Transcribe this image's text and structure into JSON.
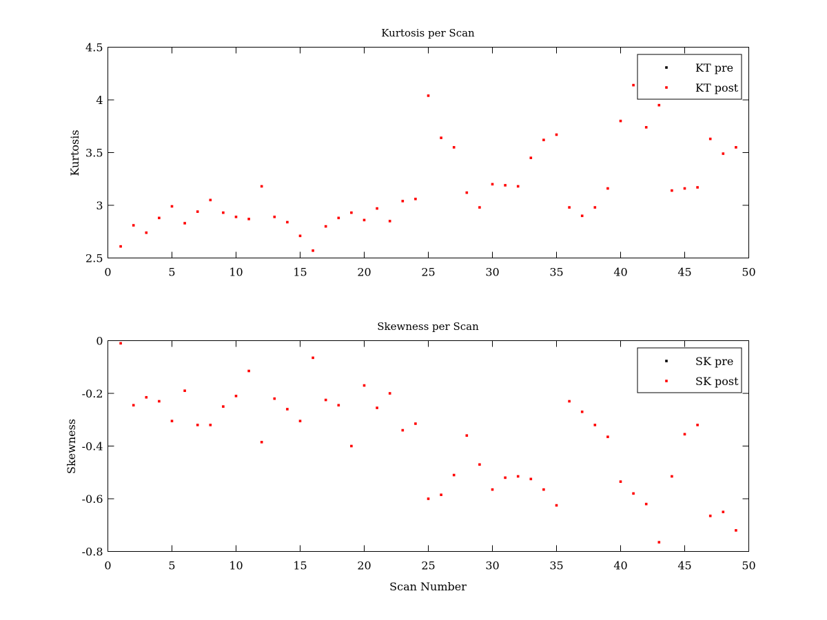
{
  "chart_data": [
    {
      "type": "scatter",
      "title": "Kurtosis per Scan",
      "xlabel": "",
      "ylabel": "Kurtosis",
      "xlim": [
        0,
        50
      ],
      "ylim": [
        2.5,
        4.5
      ],
      "xticks": [
        0,
        5,
        10,
        15,
        20,
        25,
        30,
        35,
        40,
        45,
        50
      ],
      "yticks": [
        2.5,
        3,
        3.5,
        4,
        4.5
      ],
      "xtick_labels": [
        "0",
        "5",
        "10",
        "15",
        "20",
        "25",
        "30",
        "35",
        "40",
        "45",
        "50"
      ],
      "ytick_labels": [
        "2.5",
        "3",
        "3.5",
        "4",
        "4.5"
      ],
      "grid": false,
      "legend_position": "top-right",
      "series": [
        {
          "name": "KT pre",
          "color": "#000000",
          "x": [],
          "y": []
        },
        {
          "name": "KT post",
          "color": "#ff0000",
          "x": [
            1,
            2,
            3,
            4,
            5,
            6,
            7,
            8,
            9,
            10,
            11,
            12,
            13,
            14,
            15,
            16,
            17,
            18,
            19,
            20,
            21,
            22,
            23,
            24,
            25,
            26,
            27,
            28,
            29,
            30,
            31,
            32,
            33,
            34,
            35,
            36,
            37,
            38,
            39,
            40,
            41,
            42,
            43,
            44,
            45,
            46,
            47,
            48,
            49
          ],
          "y": [
            2.61,
            2.81,
            2.74,
            2.88,
            2.99,
            2.83,
            2.94,
            3.05,
            2.93,
            2.89,
            2.87,
            3.18,
            2.89,
            2.84,
            2.71,
            2.57,
            2.8,
            2.88,
            2.93,
            2.86,
            2.97,
            2.85,
            3.04,
            3.06,
            4.04,
            3.64,
            3.55,
            3.12,
            2.98,
            3.2,
            3.19,
            3.18,
            3.45,
            3.62,
            3.67,
            2.98,
            2.9,
            2.98,
            3.16,
            3.8,
            4.14,
            3.74,
            3.95,
            3.14,
            3.16,
            3.17,
            3.63,
            3.49,
            3.55
          ]
        }
      ]
    },
    {
      "type": "scatter",
      "title": "Skewness per Scan",
      "xlabel": "Scan Number",
      "ylabel": "Skewness",
      "xlim": [
        0,
        50
      ],
      "ylim": [
        -0.8,
        0
      ],
      "xticks": [
        0,
        5,
        10,
        15,
        20,
        25,
        30,
        35,
        40,
        45,
        50
      ],
      "yticks": [
        -0.8,
        -0.6,
        -0.4,
        -0.2,
        0
      ],
      "xtick_labels": [
        "0",
        "5",
        "10",
        "15",
        "20",
        "25",
        "30",
        "35",
        "40",
        "45",
        "50"
      ],
      "ytick_labels": [
        "-0.8",
        "-0.6",
        "-0.4",
        "-0.2",
        "0"
      ],
      "grid": false,
      "legend_position": "top-right",
      "series": [
        {
          "name": "SK pre",
          "color": "#000000",
          "x": [],
          "y": []
        },
        {
          "name": "SK post",
          "color": "#ff0000",
          "x": [
            1,
            2,
            3,
            4,
            5,
            6,
            7,
            8,
            9,
            10,
            11,
            12,
            13,
            14,
            15,
            16,
            17,
            18,
            19,
            20,
            21,
            22,
            23,
            24,
            25,
            26,
            27,
            28,
            29,
            30,
            31,
            32,
            33,
            34,
            35,
            36,
            37,
            38,
            39,
            40,
            41,
            42,
            43,
            44,
            45,
            46,
            47,
            48,
            49
          ],
          "y": [
            -0.01,
            -0.245,
            -0.215,
            -0.23,
            -0.305,
            -0.19,
            -0.32,
            -0.32,
            -0.25,
            -0.21,
            -0.115,
            -0.385,
            -0.22,
            -0.26,
            -0.305,
            -0.065,
            -0.225,
            -0.245,
            -0.4,
            -0.17,
            -0.255,
            -0.2,
            -0.34,
            -0.315,
            -0.6,
            -0.585,
            -0.51,
            -0.36,
            -0.47,
            -0.565,
            -0.52,
            -0.515,
            -0.525,
            -0.565,
            -0.625,
            -0.23,
            -0.27,
            -0.32,
            -0.365,
            -0.535,
            -0.58,
            -0.62,
            -0.765,
            -0.515,
            -0.355,
            -0.32,
            -0.665,
            -0.65,
            -0.72
          ]
        }
      ]
    }
  ]
}
